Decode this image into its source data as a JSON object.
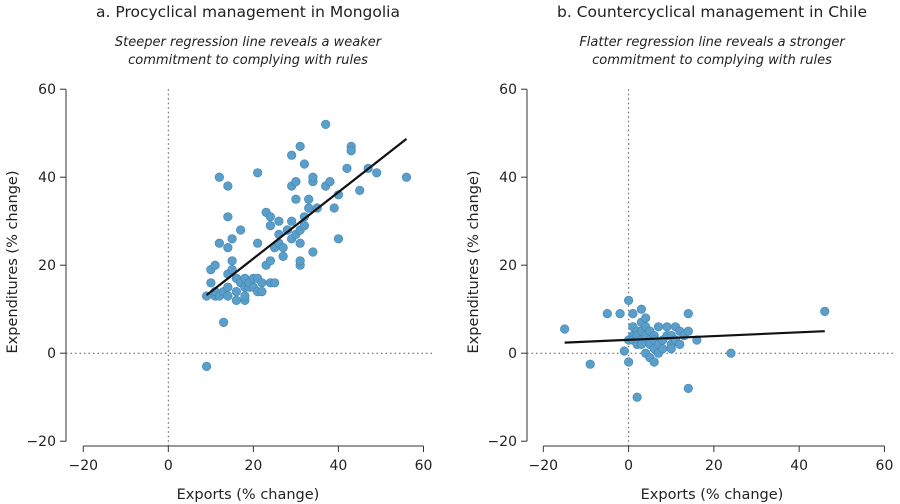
{
  "chart_data": [
    {
      "type": "scatter",
      "title": "a. Procyclical management in Mongolia",
      "subtitle": [
        "Steeper regression line reveals a weaker",
        "commitment to complying with rules"
      ],
      "xlabel": "Exports (% change)",
      "ylabel": "Expenditures (% change)",
      "xlim": [
        -25,
        62
      ],
      "ylim": [
        -22,
        63
      ],
      "xticks": [
        -20,
        0,
        20,
        40,
        60
      ],
      "yticks": [
        -20,
        0,
        20,
        40,
        60
      ],
      "xtick_labels": [
        "−20",
        "0",
        "20",
        "40",
        "60"
      ],
      "ytick_labels": [
        "−20",
        "0",
        "20",
        "40",
        "60"
      ],
      "zero_lines": true,
      "regression": {
        "x": [
          9,
          56
        ],
        "y": [
          13.2,
          48.7
        ]
      },
      "points": [
        [
          9,
          -3
        ],
        [
          9,
          13
        ],
        [
          10,
          19
        ],
        [
          10,
          16
        ],
        [
          11,
          13
        ],
        [
          11,
          20
        ],
        [
          11,
          14
        ],
        [
          12,
          25
        ],
        [
          12,
          40
        ],
        [
          12,
          13
        ],
        [
          13,
          7
        ],
        [
          13,
          14
        ],
        [
          14,
          31
        ],
        [
          14,
          38
        ],
        [
          14,
          24
        ],
        [
          14,
          18
        ],
        [
          14,
          13
        ],
        [
          14,
          15
        ],
        [
          15,
          26
        ],
        [
          15,
          21
        ],
        [
          15,
          19
        ],
        [
          16,
          17
        ],
        [
          16,
          14
        ],
        [
          16,
          12
        ],
        [
          17,
          16
        ],
        [
          17,
          28
        ],
        [
          18,
          15
        ],
        [
          18,
          12
        ],
        [
          18,
          13
        ],
        [
          18,
          17
        ],
        [
          19,
          15
        ],
        [
          19,
          16
        ],
        [
          20,
          17
        ],
        [
          20,
          15
        ],
        [
          21,
          25
        ],
        [
          21,
          41
        ],
        [
          21,
          17
        ],
        [
          21,
          14
        ],
        [
          22,
          16
        ],
        [
          22,
          14
        ],
        [
          23,
          20
        ],
        [
          23,
          32
        ],
        [
          24,
          31
        ],
        [
          24,
          29
        ],
        [
          24,
          21
        ],
        [
          24,
          16
        ],
        [
          25,
          24
        ],
        [
          25,
          16
        ],
        [
          26,
          30
        ],
        [
          26,
          27
        ],
        [
          26,
          25
        ],
        [
          27,
          24
        ],
        [
          27,
          22
        ],
        [
          28,
          28
        ],
        [
          28,
          28
        ],
        [
          29,
          26
        ],
        [
          29,
          38
        ],
        [
          29,
          45
        ],
        [
          29,
          30
        ],
        [
          30,
          39
        ],
        [
          30,
          35
        ],
        [
          30,
          27
        ],
        [
          31,
          47
        ],
        [
          31,
          28
        ],
        [
          31,
          25
        ],
        [
          31,
          20
        ],
        [
          31,
          21
        ],
        [
          32,
          43
        ],
        [
          32,
          31
        ],
        [
          32,
          29
        ],
        [
          33,
          33
        ],
        [
          33,
          35
        ],
        [
          34,
          23
        ],
        [
          34,
          39
        ],
        [
          34,
          40
        ],
        [
          35,
          33
        ],
        [
          37,
          52
        ],
        [
          37,
          38
        ],
        [
          38,
          39
        ],
        [
          39,
          33
        ],
        [
          40,
          26
        ],
        [
          40,
          36
        ],
        [
          42,
          42
        ],
        [
          43,
          47
        ],
        [
          43,
          46
        ],
        [
          45,
          37
        ],
        [
          47,
          42
        ],
        [
          49,
          41
        ],
        [
          56,
          40
        ]
      ]
    },
    {
      "type": "scatter",
      "title": "b. Countercyclical management in Chile",
      "subtitle": [
        "Flatter regression line reveals a stronger",
        "commitment to complying with rules"
      ],
      "xlabel": "Exports (% change)",
      "ylabel": "Expenditures (% change)",
      "xlim": [
        -25,
        62
      ],
      "ylim": [
        -22,
        63
      ],
      "xticks": [
        -20,
        0,
        20,
        40,
        60
      ],
      "yticks": [
        -20,
        0,
        20,
        40,
        60
      ],
      "xtick_labels": [
        "−20",
        "0",
        "20",
        "40",
        "60"
      ],
      "ytick_labels": [
        "−20",
        "0",
        "20",
        "40",
        "60"
      ],
      "zero_lines": true,
      "regression": {
        "x": [
          -15,
          46
        ],
        "y": [
          2.4,
          5.0
        ]
      },
      "points": [
        [
          -15,
          5.5
        ],
        [
          -9,
          -2.5
        ],
        [
          -5,
          9
        ],
        [
          -2,
          9
        ],
        [
          -1,
          0.5
        ],
        [
          0,
          12
        ],
        [
          0,
          -2
        ],
        [
          0,
          3
        ],
        [
          1,
          9
        ],
        [
          1,
          6
        ],
        [
          1,
          4
        ],
        [
          1,
          3
        ],
        [
          2,
          -10
        ],
        [
          2,
          5
        ],
        [
          2,
          4
        ],
        [
          2,
          2
        ],
        [
          3,
          7
        ],
        [
          3,
          5
        ],
        [
          3,
          3
        ],
        [
          3,
          2
        ],
        [
          3,
          10
        ],
        [
          4,
          6
        ],
        [
          4,
          4
        ],
        [
          4,
          0
        ],
        [
          4,
          8
        ],
        [
          5,
          3
        ],
        [
          5,
          -1
        ],
        [
          5,
          2
        ],
        [
          5,
          5
        ],
        [
          6,
          4
        ],
        [
          6,
          1
        ],
        [
          6,
          -2
        ],
        [
          6,
          3
        ],
        [
          7,
          6
        ],
        [
          7,
          2
        ],
        [
          7,
          0
        ],
        [
          8,
          3
        ],
        [
          8,
          1
        ],
        [
          9,
          4
        ],
        [
          9,
          6
        ],
        [
          10,
          2
        ],
        [
          10,
          1
        ],
        [
          10,
          4
        ],
        [
          11,
          6
        ],
        [
          11,
          3
        ],
        [
          12,
          5
        ],
        [
          12,
          2
        ],
        [
          13,
          4
        ],
        [
          14,
          9
        ],
        [
          14,
          -8
        ],
        [
          14,
          5
        ],
        [
          16,
          3
        ],
        [
          24,
          0
        ],
        [
          46,
          9.5
        ]
      ]
    }
  ]
}
